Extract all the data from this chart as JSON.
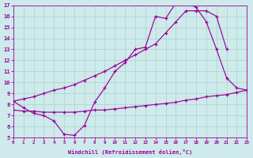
{
  "xlabel": "Windchill (Refroidissement éolien,°C)",
  "bg_color": "#ceeaea",
  "line_color": "#990099",
  "xlim": [
    0,
    23
  ],
  "ylim": [
    5,
    17
  ],
  "xticks": [
    0,
    1,
    2,
    3,
    4,
    5,
    6,
    7,
    8,
    9,
    10,
    11,
    12,
    13,
    14,
    15,
    16,
    17,
    18,
    19,
    20,
    21,
    22,
    23
  ],
  "yticks": [
    5,
    6,
    7,
    8,
    9,
    10,
    11,
    12,
    13,
    14,
    15,
    16,
    17
  ],
  "grid_color": "#aed0d0",
  "curve1_x": [
    0,
    1,
    2,
    3,
    4,
    5,
    6,
    7,
    8,
    9,
    10,
    11,
    12,
    13,
    14,
    15,
    16,
    17,
    18,
    19,
    20,
    21,
    22,
    23
  ],
  "curve1_y": [
    8.3,
    7.7,
    7.2,
    7.0,
    6.5,
    5.3,
    5.2,
    6.1,
    8.2,
    9.5,
    11.0,
    11.8,
    13.0,
    13.2,
    16.0,
    15.8,
    17.2,
    17.3,
    16.8,
    15.5,
    13.0,
    10.4,
    9.5,
    9.3
  ],
  "curve2_x": [
    0,
    1,
    2,
    3,
    4,
    5,
    6,
    7,
    8,
    9,
    10,
    11,
    12,
    13,
    14,
    15,
    16,
    17,
    18,
    19,
    20,
    21
  ],
  "curve2_y": [
    8.3,
    8.5,
    8.7,
    9.0,
    9.3,
    9.5,
    9.8,
    10.2,
    10.6,
    11.0,
    11.5,
    12.0,
    12.5,
    13.0,
    13.5,
    14.5,
    15.5,
    16.5,
    16.5,
    16.5,
    16.0,
    13.0
  ],
  "curve3_x": [
    0,
    1,
    2,
    3,
    4,
    5,
    6,
    7,
    8,
    9,
    10,
    11,
    12,
    13,
    14,
    15,
    16,
    17,
    18,
    19,
    20,
    21,
    22,
    23
  ],
  "curve3_y": [
    7.5,
    7.4,
    7.4,
    7.3,
    7.3,
    7.3,
    7.3,
    7.4,
    7.5,
    7.5,
    7.6,
    7.7,
    7.8,
    7.9,
    8.0,
    8.1,
    8.2,
    8.4,
    8.5,
    8.7,
    8.8,
    8.9,
    9.1,
    9.3
  ]
}
